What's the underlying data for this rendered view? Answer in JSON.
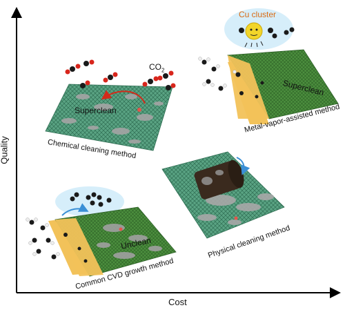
{
  "axes": {
    "y_label": "Quality",
    "x_label": "Cost"
  },
  "panels": {
    "chemical": {
      "method_label": "Chemical cleaning method",
      "surface_label": "Superclean",
      "gas_label": "CO",
      "gas_subscript": "2"
    },
    "metal_vapor": {
      "method_label": "Metal-vapor-assisted method",
      "surface_label": "Superclean",
      "cluster_label": "Cu cluster"
    },
    "physical": {
      "method_label": "Physical cleaning method"
    },
    "cvd": {
      "method_label": "Common CVD growth method",
      "surface_label": "Unclean"
    }
  },
  "colors": {
    "graphene": "#4f9a7a",
    "contaminant": "#9a9a9a",
    "substrate": "#f2c25a",
    "carbon": "#1a1a1a",
    "oxygen": "#d8261c",
    "hydrogen": "#eeeeee",
    "copper": "#f2d52a",
    "halo": "#d6eefa",
    "arrow_red": "#d22a1a",
    "arrow_blue": "#3a8fd6"
  }
}
